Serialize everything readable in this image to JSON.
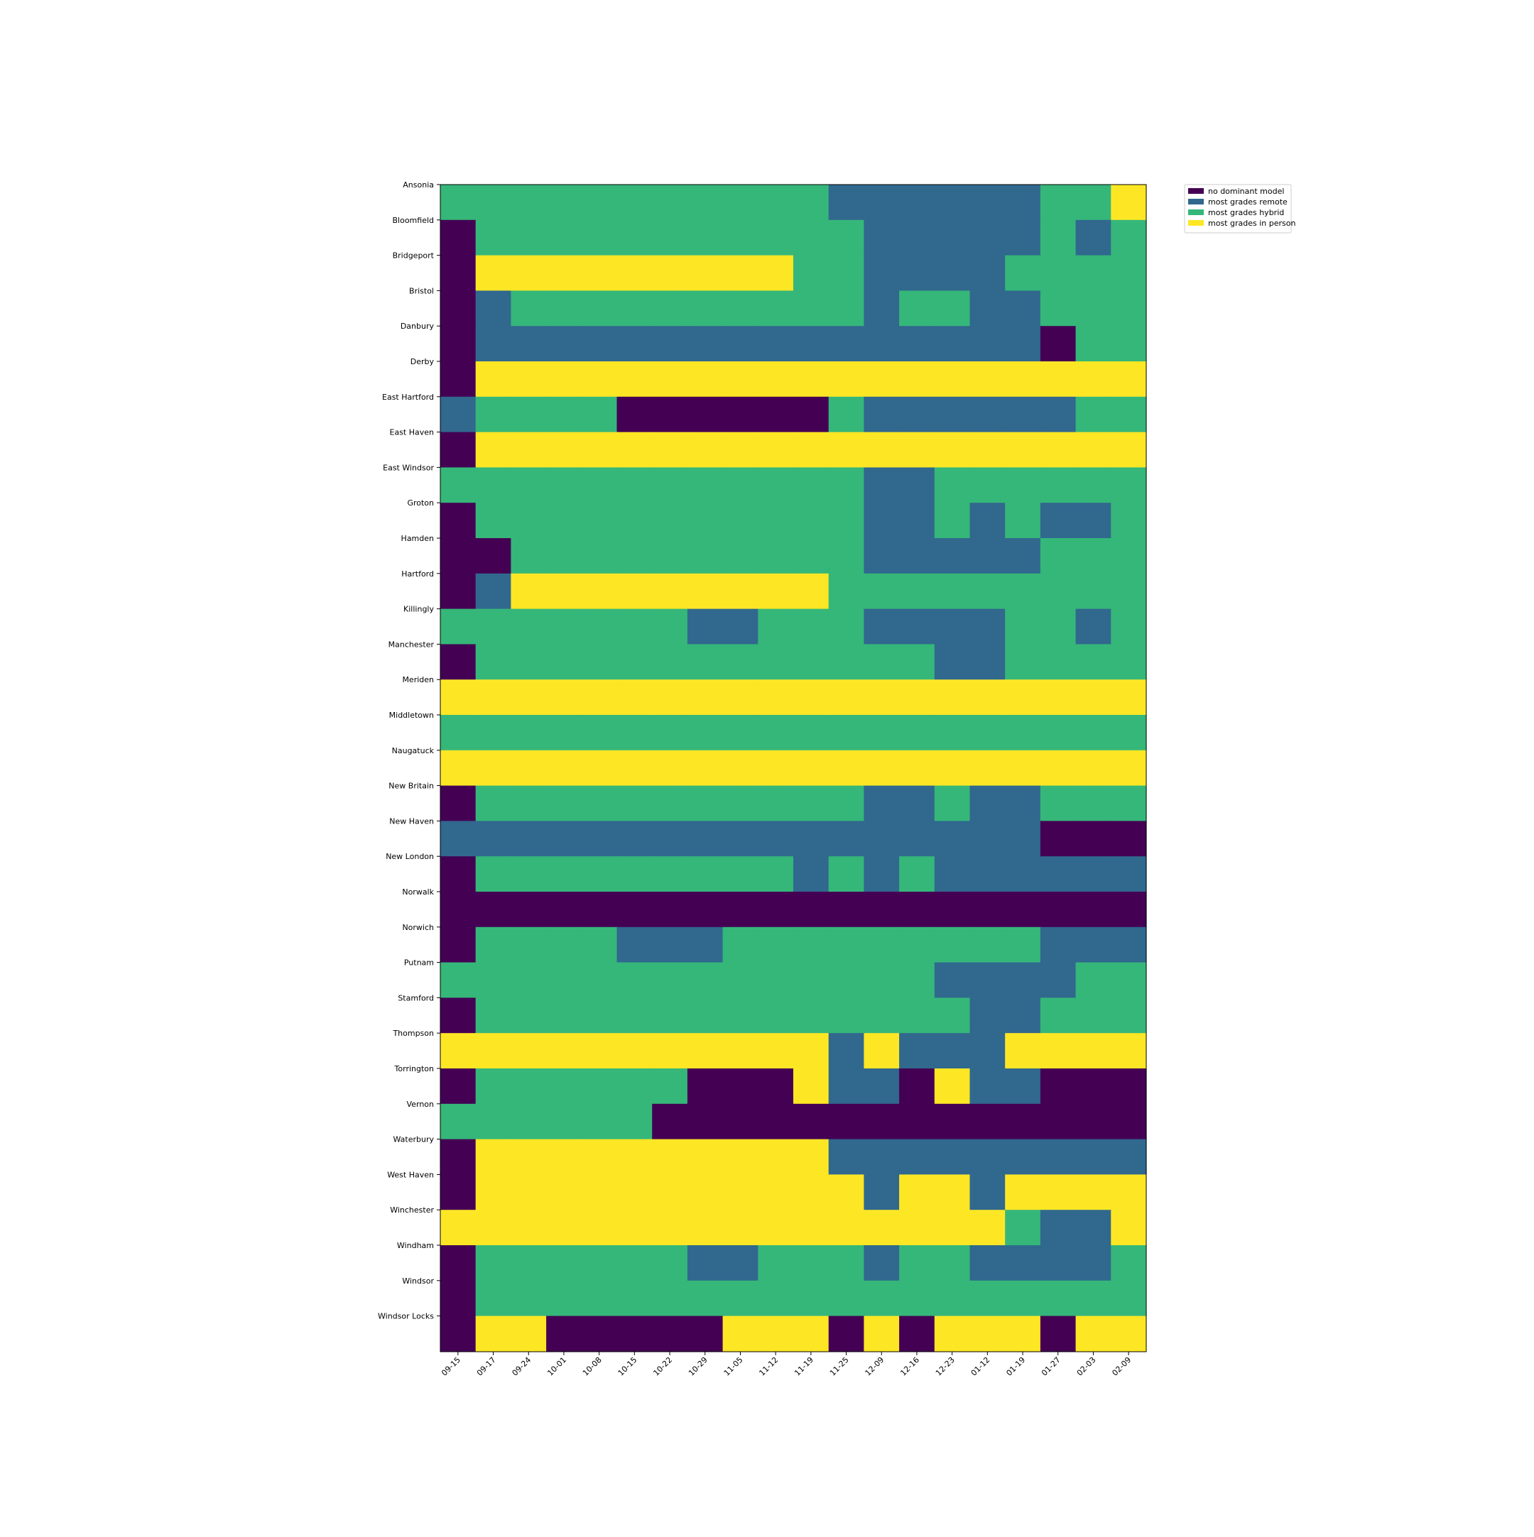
{
  "chart_data": {
    "type": "heatmap",
    "title": "",
    "xlabel": "",
    "ylabel": "",
    "grid": false,
    "legend_position": "upper right, outside plot",
    "x": [
      "09-15",
      "09-17",
      "09-24",
      "10-01",
      "10-08",
      "10-15",
      "10-22",
      "10-29",
      "11-05",
      "11-12",
      "11-19",
      "11-25",
      "12-09",
      "12-16",
      "12-23",
      "01-12",
      "01-19",
      "01-27",
      "02-03",
      "02-09"
    ],
    "y": [
      "Ansonia",
      "Bloomfield",
      "Bridgeport",
      "Bristol",
      "Danbury",
      "Derby",
      "East Hartford",
      "East Haven",
      "East Windsor",
      "Groton",
      "Hamden",
      "Hartford",
      "Killingly",
      "Manchester",
      "Meriden",
      "Middletown",
      "Naugatuck",
      "New Britain",
      "New Haven",
      "New London",
      "Norwalk",
      "Norwich",
      "Putnam",
      "Stamford",
      "Thompson",
      "Torrington",
      "Vernon",
      "Waterbury",
      "West Haven",
      "Winchester",
      "Windham",
      "Windsor",
      "Windsor Locks"
    ],
    "categories": [
      {
        "code": 0,
        "label": "no dominant model",
        "color": "#440154"
      },
      {
        "code": 1,
        "label": "most grades remote",
        "color": "#31688e"
      },
      {
        "code": 2,
        "label": "most grades hybrid",
        "color": "#35b779"
      },
      {
        "code": 3,
        "label": "most grades in person",
        "color": "#fde725"
      }
    ],
    "values": [
      [
        2,
        2,
        2,
        2,
        2,
        2,
        2,
        2,
        2,
        2,
        2,
        1,
        1,
        1,
        1,
        1,
        1,
        2,
        2,
        3
      ],
      [
        0,
        2,
        2,
        2,
        2,
        2,
        2,
        2,
        2,
        2,
        2,
        2,
        1,
        1,
        1,
        1,
        1,
        2,
        1,
        2
      ],
      [
        0,
        3,
        3,
        3,
        3,
        3,
        3,
        3,
        3,
        3,
        2,
        2,
        1,
        1,
        1,
        1,
        2,
        2,
        2,
        2
      ],
      [
        0,
        1,
        2,
        2,
        2,
        2,
        2,
        2,
        2,
        2,
        2,
        2,
        1,
        2,
        2,
        1,
        1,
        2,
        2,
        2
      ],
      [
        0,
        1,
        1,
        1,
        1,
        1,
        1,
        1,
        1,
        1,
        1,
        1,
        1,
        1,
        1,
        1,
        1,
        0,
        2,
        2
      ],
      [
        0,
        3,
        3,
        3,
        3,
        3,
        3,
        3,
        3,
        3,
        3,
        3,
        3,
        3,
        3,
        3,
        3,
        3,
        3,
        3
      ],
      [
        1,
        2,
        2,
        2,
        2,
        0,
        0,
        0,
        0,
        0,
        0,
        2,
        1,
        1,
        1,
        1,
        1,
        1,
        2,
        2
      ],
      [
        0,
        3,
        3,
        3,
        3,
        3,
        3,
        3,
        3,
        3,
        3,
        3,
        3,
        3,
        3,
        3,
        3,
        3,
        3,
        3
      ],
      [
        2,
        2,
        2,
        2,
        2,
        2,
        2,
        2,
        2,
        2,
        2,
        2,
        1,
        1,
        2,
        2,
        2,
        2,
        2,
        2
      ],
      [
        0,
        2,
        2,
        2,
        2,
        2,
        2,
        2,
        2,
        2,
        2,
        2,
        1,
        1,
        2,
        1,
        2,
        1,
        1,
        2
      ],
      [
        0,
        0,
        2,
        2,
        2,
        2,
        2,
        2,
        2,
        2,
        2,
        2,
        1,
        1,
        1,
        1,
        1,
        2,
        2,
        2
      ],
      [
        0,
        1,
        3,
        3,
        3,
        3,
        3,
        3,
        3,
        3,
        3,
        2,
        2,
        2,
        2,
        2,
        2,
        2,
        2,
        2
      ],
      [
        2,
        2,
        2,
        2,
        2,
        2,
        2,
        1,
        1,
        2,
        2,
        2,
        1,
        1,
        1,
        1,
        2,
        2,
        1,
        2
      ],
      [
        0,
        2,
        2,
        2,
        2,
        2,
        2,
        2,
        2,
        2,
        2,
        2,
        2,
        2,
        1,
        1,
        2,
        2,
        2,
        2
      ],
      [
        3,
        3,
        3,
        3,
        3,
        3,
        3,
        3,
        3,
        3,
        3,
        3,
        3,
        3,
        3,
        3,
        3,
        3,
        3,
        3
      ],
      [
        2,
        2,
        2,
        2,
        2,
        2,
        2,
        2,
        2,
        2,
        2,
        2,
        2,
        2,
        2,
        2,
        2,
        2,
        2,
        2
      ],
      [
        3,
        3,
        3,
        3,
        3,
        3,
        3,
        3,
        3,
        3,
        3,
        3,
        3,
        3,
        3,
        3,
        3,
        3,
        3,
        3
      ],
      [
        0,
        2,
        2,
        2,
        2,
        2,
        2,
        2,
        2,
        2,
        2,
        2,
        1,
        1,
        2,
        1,
        1,
        2,
        2,
        2
      ],
      [
        1,
        1,
        1,
        1,
        1,
        1,
        1,
        1,
        1,
        1,
        1,
        1,
        1,
        1,
        1,
        1,
        1,
        0,
        0,
        0
      ],
      [
        0,
        2,
        2,
        2,
        2,
        2,
        2,
        2,
        2,
        2,
        1,
        2,
        1,
        2,
        1,
        1,
        1,
        1,
        1,
        1
      ],
      [
        0,
        0,
        0,
        0,
        0,
        0,
        0,
        0,
        0,
        0,
        0,
        0,
        0,
        0,
        0,
        0,
        0,
        0,
        0,
        0
      ],
      [
        0,
        2,
        2,
        2,
        2,
        1,
        1,
        1,
        2,
        2,
        2,
        2,
        2,
        2,
        2,
        2,
        2,
        1,
        1,
        1
      ],
      [
        2,
        2,
        2,
        2,
        2,
        2,
        2,
        2,
        2,
        2,
        2,
        2,
        2,
        2,
        1,
        1,
        1,
        1,
        2,
        2
      ],
      [
        0,
        2,
        2,
        2,
        2,
        2,
        2,
        2,
        2,
        2,
        2,
        2,
        2,
        2,
        2,
        1,
        1,
        2,
        2,
        2
      ],
      [
        3,
        3,
        3,
        3,
        3,
        3,
        3,
        3,
        3,
        3,
        3,
        1,
        3,
        1,
        1,
        1,
        3,
        3,
        3,
        3
      ],
      [
        0,
        2,
        2,
        2,
        2,
        2,
        2,
        0,
        0,
        0,
        3,
        1,
        1,
        0,
        3,
        1,
        1,
        0,
        0,
        0
      ],
      [
        2,
        2,
        2,
        2,
        2,
        2,
        0,
        0,
        0,
        0,
        0,
        0,
        0,
        0,
        0,
        0,
        0,
        0,
        0,
        0
      ],
      [
        0,
        3,
        3,
        3,
        3,
        3,
        3,
        3,
        3,
        3,
        3,
        1,
        1,
        1,
        1,
        1,
        1,
        1,
        1,
        1
      ],
      [
        0,
        3,
        3,
        3,
        3,
        3,
        3,
        3,
        3,
        3,
        3,
        3,
        1,
        3,
        3,
        1,
        3,
        3,
        3,
        3
      ],
      [
        3,
        3,
        3,
        3,
        3,
        3,
        3,
        3,
        3,
        3,
        3,
        3,
        3,
        3,
        3,
        3,
        2,
        1,
        1,
        3
      ],
      [
        0,
        2,
        2,
        2,
        2,
        2,
        2,
        1,
        1,
        2,
        2,
        2,
        1,
        2,
        2,
        1,
        1,
        1,
        1,
        2
      ],
      [
        0,
        2,
        2,
        2,
        2,
        2,
        2,
        2,
        2,
        2,
        2,
        2,
        2,
        2,
        2,
        2,
        2,
        2,
        2,
        2
      ],
      [
        0,
        3,
        3,
        0,
        0,
        0,
        0,
        0,
        3,
        3,
        3,
        0,
        3,
        0,
        3,
        3,
        3,
        0,
        3,
        3
      ]
    ]
  }
}
